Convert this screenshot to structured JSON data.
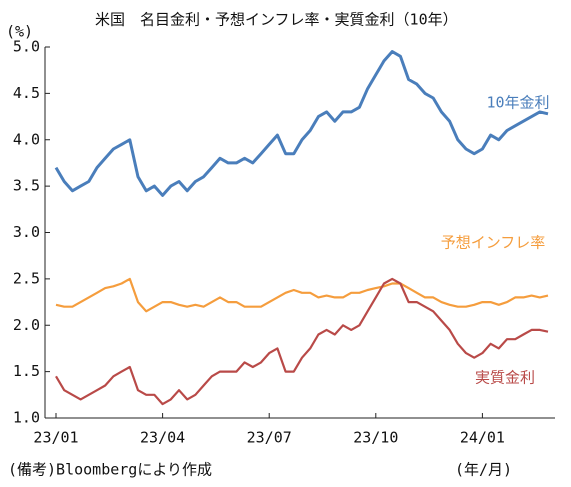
{
  "chart_data": {
    "type": "line",
    "title": "米国　名目金利・予想インフレ率・実質金利（10年）",
    "y_label": "(%)",
    "x_label": "(年/月)",
    "note": "(備考)Bloombergにより作成",
    "categories": [
      "23/01",
      null,
      null,
      null,
      null,
      null,
      null,
      null,
      null,
      null,
      null,
      null,
      null,
      "23/04",
      null,
      null,
      null,
      null,
      null,
      null,
      null,
      null,
      null,
      null,
      null,
      null,
      "23/07",
      null,
      null,
      null,
      null,
      null,
      null,
      null,
      null,
      null,
      null,
      null,
      null,
      "23/10",
      null,
      null,
      null,
      null,
      null,
      null,
      null,
      null,
      null,
      null,
      null,
      null,
      "24/01",
      null,
      null,
      null,
      null,
      null,
      null,
      null,
      null
    ],
    "series": [
      {
        "name": "10年金利",
        "color": "#4a7ebb",
        "values": [
          3.7,
          3.55,
          3.45,
          3.5,
          3.55,
          3.7,
          3.8,
          3.9,
          3.95,
          4.0,
          3.6,
          3.45,
          3.5,
          3.4,
          3.5,
          3.55,
          3.45,
          3.55,
          3.6,
          3.7,
          3.8,
          3.75,
          3.75,
          3.8,
          3.75,
          3.85,
          3.95,
          4.05,
          3.85,
          3.85,
          4.0,
          4.1,
          4.25,
          4.3,
          4.2,
          4.3,
          4.3,
          4.35,
          4.55,
          4.7,
          4.85,
          4.95,
          4.9,
          4.65,
          4.6,
          4.5,
          4.45,
          4.3,
          4.2,
          4.0,
          3.9,
          3.85,
          3.9,
          4.05,
          4.0,
          4.1,
          4.15,
          4.2,
          4.25,
          4.3,
          4.28
        ]
      },
      {
        "name": "予想インフレ率",
        "color": "#f59d3d",
        "values": [
          2.22,
          2.2,
          2.2,
          2.25,
          2.3,
          2.35,
          2.4,
          2.42,
          2.45,
          2.5,
          2.25,
          2.15,
          2.2,
          2.25,
          2.25,
          2.22,
          2.2,
          2.22,
          2.2,
          2.25,
          2.3,
          2.25,
          2.25,
          2.2,
          2.2,
          2.2,
          2.25,
          2.3,
          2.35,
          2.38,
          2.35,
          2.35,
          2.3,
          2.32,
          2.3,
          2.3,
          2.35,
          2.35,
          2.38,
          2.4,
          2.42,
          2.45,
          2.45,
          2.4,
          2.35,
          2.3,
          2.3,
          2.25,
          2.22,
          2.2,
          2.2,
          2.22,
          2.25,
          2.25,
          2.22,
          2.25,
          2.3,
          2.3,
          2.32,
          2.3,
          2.32
        ]
      },
      {
        "name": "実質金利",
        "color": "#b94a48",
        "values": [
          1.45,
          1.3,
          1.25,
          1.2,
          1.25,
          1.3,
          1.35,
          1.45,
          1.5,
          1.55,
          1.3,
          1.25,
          1.25,
          1.15,
          1.2,
          1.3,
          1.2,
          1.25,
          1.35,
          1.45,
          1.5,
          1.5,
          1.5,
          1.6,
          1.55,
          1.6,
          1.7,
          1.75,
          1.5,
          1.5,
          1.65,
          1.75,
          1.9,
          1.95,
          1.9,
          2.0,
          1.95,
          2.0,
          2.15,
          2.3,
          2.45,
          2.5,
          2.45,
          2.25,
          2.25,
          2.2,
          2.15,
          2.05,
          1.95,
          1.8,
          1.7,
          1.65,
          1.7,
          1.8,
          1.75,
          1.85,
          1.85,
          1.9,
          1.95,
          1.95,
          1.93
        ]
      }
    ],
    "ylim": [
      1,
      5
    ],
    "yticks": [
      {
        "value": 1,
        "label": "1.0"
      },
      1.5,
      {
        "value": 2,
        "label": "2.0"
      },
      2.5,
      {
        "value": 3,
        "label": "3.0"
      },
      3.5,
      {
        "value": 4,
        "label": "4.0"
      },
      4.5,
      {
        "value": 5,
        "label": "5.0"
      }
    ]
  }
}
